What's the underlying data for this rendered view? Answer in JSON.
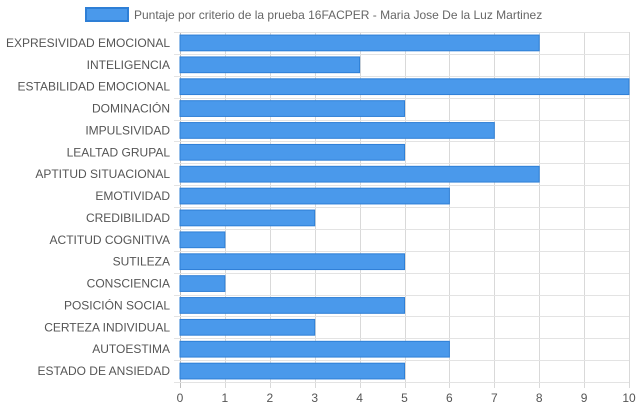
{
  "chart_data": {
    "type": "bar",
    "orientation": "horizontal",
    "categories": [
      "EXPRESIVIDAD EMOCIONAL",
      "INTELIGENCIA",
      "ESTABILIDAD EMOCIONAL",
      "DOMINACIÓN",
      "IMPULSIVIDAD",
      "LEALTAD GRUPAL",
      "APTITUD SITUACIONAL",
      "EMOTIVIDAD",
      "CREDIBILIDAD",
      "ACTITUD COGNITIVA",
      "SUTILEZA",
      "CONSCIENCIA",
      "POSICIÓN SOCIAL",
      "CERTEZA INDIVIDUAL",
      "AUTOESTIMA",
      "ESTADO DE ANSIEDAD"
    ],
    "series": [
      {
        "name": "Puntaje por criterio de la prueba 16FACPER - Maria Jose De la Luz Martinez",
        "values": [
          8,
          4,
          10,
          5,
          7,
          5,
          8,
          6,
          3,
          1,
          5,
          1,
          5,
          3,
          6,
          5
        ],
        "color": "#4a99eb",
        "border_color": "#2e7fd6"
      }
    ],
    "xlim": [
      0,
      10
    ],
    "xticks": [
      "0",
      "1",
      "2",
      "3",
      "4",
      "5",
      "6",
      "7",
      "8",
      "9",
      "10"
    ],
    "grid": true,
    "legend_position": "top"
  }
}
